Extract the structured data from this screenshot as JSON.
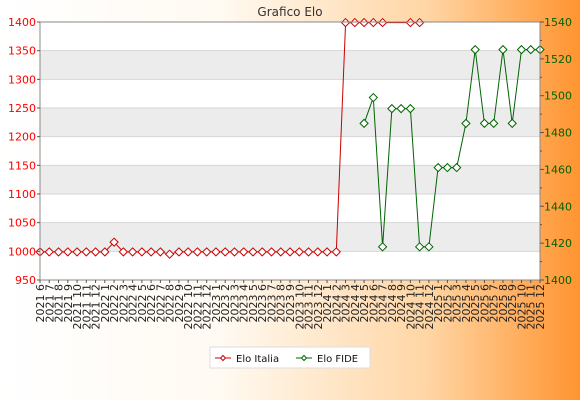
{
  "chart_data": {
    "type": "line",
    "title": "Grafico Elo",
    "xlabel": "",
    "ylabel": "",
    "categories": [
      "2021 6",
      "2021 7",
      "2021 8",
      "2021 9",
      "2021 10",
      "2021 11",
      "2021 12",
      "2022 1",
      "2022 2",
      "2022 3",
      "2022 4",
      "2022 5",
      "2022 6",
      "2022 7",
      "2022 8",
      "2022 9",
      "2022 10",
      "2022 11",
      "2022 12",
      "2023 1",
      "2023 2",
      "2023 3",
      "2023 4",
      "2023 5",
      "2023 6",
      "2023 7",
      "2023 8",
      "2023 9",
      "2023 10",
      "2023 11",
      "2023 12",
      "2024 1",
      "2024 2",
      "2024 3",
      "2024 4",
      "2024 5",
      "2024 6",
      "2024 7",
      "2024 8",
      "2024 9",
      "2024 10",
      "2024 11",
      "2024 12",
      "2025 1",
      "2025 2",
      "2025 3",
      "2025 4",
      "2025 5",
      "2025 6",
      "2025 7",
      "2025 8",
      "2025 9",
      "2025 10",
      "2025 11",
      "2025 12"
    ],
    "y_left": {
      "ticks": [
        950,
        1000,
        1050,
        1100,
        1150,
        1200,
        1250,
        1300,
        1350,
        1400
      ],
      "ylim": [
        950,
        1400
      ],
      "color": "#ff0000"
    },
    "y_right": {
      "ticks": [
        1400,
        1420,
        1440,
        1460,
        1480,
        1500,
        1520,
        1540
      ],
      "ylim": [
        1400,
        1540
      ],
      "color": "#006400"
    },
    "series": [
      {
        "name": "Elo Italia",
        "axis": "left",
        "color": "#cc0000",
        "values": [
          999,
          999,
          999,
          999,
          999,
          999,
          999,
          999,
          1016,
          999,
          999,
          999,
          999,
          999,
          995,
          999,
          999,
          999,
          999,
          999,
          999,
          999,
          999,
          999,
          999,
          999,
          999,
          999,
          999,
          999,
          999,
          999,
          999,
          1399,
          1399,
          1399,
          1399,
          1399,
          null,
          null,
          1399,
          1399,
          null,
          null,
          null,
          null,
          null,
          null,
          null,
          null,
          null,
          null,
          null,
          null,
          null
        ]
      },
      {
        "name": "Elo FIDE",
        "axis": "right",
        "color": "#006400",
        "values": [
          null,
          null,
          null,
          null,
          null,
          null,
          null,
          null,
          null,
          null,
          null,
          null,
          null,
          null,
          null,
          null,
          null,
          null,
          null,
          null,
          null,
          null,
          null,
          null,
          null,
          null,
          null,
          null,
          null,
          null,
          null,
          null,
          null,
          null,
          null,
          1485,
          1499,
          1418,
          1493,
          1493,
          1493,
          1418,
          1418,
          1461,
          1461,
          1461,
          1485,
          1525,
          1485,
          1485,
          1525,
          1485,
          1525,
          1525,
          1525
        ]
      }
    ],
    "grid": true,
    "legend_position": "bottom"
  }
}
